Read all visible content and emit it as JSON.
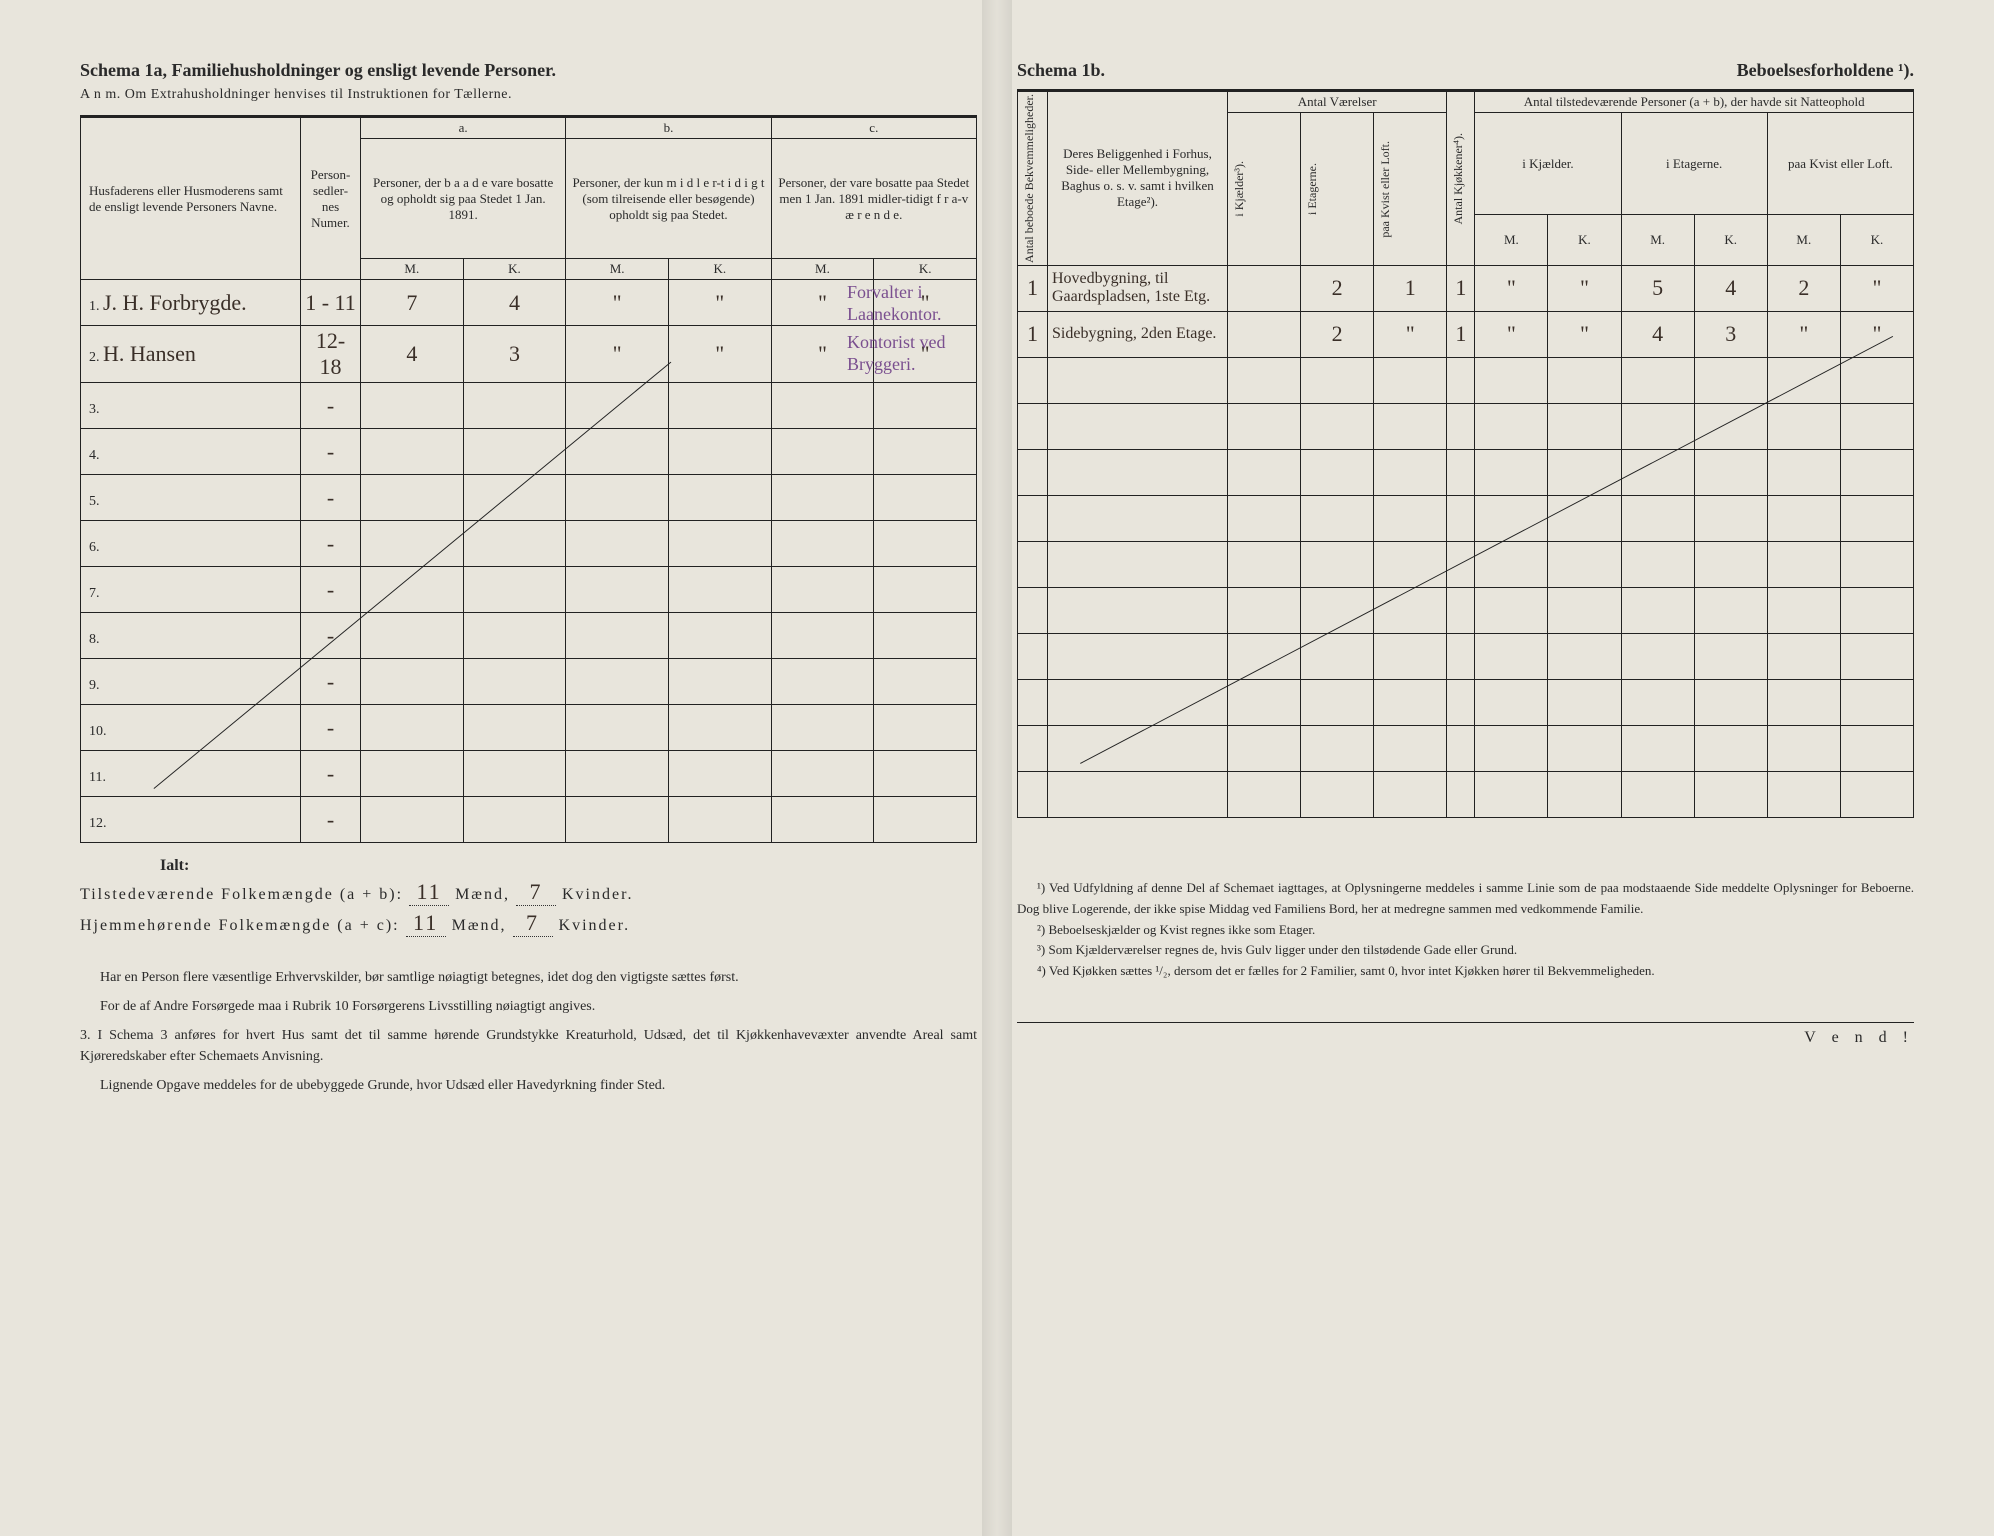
{
  "left": {
    "schema_title": "Schema 1a,  Familiehusholdninger og ensligt levende Personer.",
    "anm": "A n m.  Om Extrahusholdninger henvises til Instruktionen for Tællerne.",
    "headers": {
      "col_name": "Husfaderens eller Husmoderens samt de ensligt levende Personers Navne.",
      "col_num": "Person-sedler-nes Numer.",
      "a_label": "a.",
      "a_text": "Personer, der b a a d e vare bosatte og opholdt sig paa Stedet 1 Jan. 1891.",
      "b_label": "b.",
      "b_text": "Personer, der kun m i d l e r-t i d i g t (som tilreisende eller besøgende) opholdt sig paa Stedet.",
      "c_label": "c.",
      "c_text": "Personer, der vare bosatte paa Stedet men 1 Jan. 1891 midler-tidigt f r a-v æ r e n d e.",
      "M": "M.",
      "K": "K."
    },
    "rows": [
      {
        "n": "1.",
        "name": "J. H. Forbrygde.",
        "num": "1 - 11",
        "aM": "7",
        "aK": "4",
        "bM": "\"",
        "bK": "\"",
        "cM": "\"",
        "cK": "\"",
        "ann": "Forvalter i Laanekontor."
      },
      {
        "n": "2.",
        "name": "H. Hansen",
        "num": "12-18",
        "aM": "4",
        "aK": "3",
        "bM": "\"",
        "bK": "\"",
        "cM": "\"",
        "cK": "\"",
        "ann": "Kontorist ved Bryggeri."
      },
      {
        "n": "3."
      },
      {
        "n": "4."
      },
      {
        "n": "5."
      },
      {
        "n": "6."
      },
      {
        "n": "7."
      },
      {
        "n": "8."
      },
      {
        "n": "9."
      },
      {
        "n": "10."
      },
      {
        "n": "11."
      },
      {
        "n": "12."
      }
    ],
    "ialt": {
      "label": "Ialt:",
      "line1_a": "Tilstedeværende Folkemængde (a + b):",
      "line1_m": "11",
      "line1_mlabel": "Mænd,",
      "line1_k": "7",
      "line1_klabel": "Kvinder.",
      "line2_a": "Hjemmehørende Folkemængde (a + c):",
      "line2_m": "11",
      "line2_k": "7"
    },
    "footer": {
      "p1": "Har en Person flere væsentlige Erhvervskilder, bør samtlige nøiagtigt betegnes, idet dog den vigtigste sættes først.",
      "p2": "For de af Andre Forsørgede maa i Rubrik 10 Forsørgerens Livsstilling nøiagtigt angives.",
      "p3": "3. I Schema 3 anføres for hvert Hus samt det til samme hørende Grundstykke Kreaturhold, Udsæd, det til Kjøkkenhavevæxter anvendte Areal samt Kjøreredskaber efter Schemaets Anvisning.",
      "p4": "Lignende Opgave meddeles for de ubebyggede Grunde, hvor Udsæd eller Havedyrkning finder Sted."
    }
  },
  "right": {
    "schema_title": "Schema 1b.",
    "schema_sub": "Beboelsesforholdene ¹).",
    "headers": {
      "col_bekv": "Antal beboede Bekvemmeligheder.",
      "col_belig": "Deres Beliggenhed i Forhus, Side- eller Mellembygning, Baghus o. s. v. samt i hvilken Etage²).",
      "antal_vaer": "Antal Værelser",
      "kjael": "i Kjælder³).",
      "etag": "i Etagerne.",
      "kvist": "paa Kvist eller Loft.",
      "kjok": "Antal Kjøkkener⁴).",
      "antal_pers": "Antal tilstedeværende Personer (a + b), der havde sit Natteophold",
      "ikj": "i Kjælder.",
      "iet": "i Etagerne.",
      "paak": "paa Kvist eller Loft.",
      "M": "M.",
      "K": "K."
    },
    "rows": [
      {
        "bekv": "1",
        "belig": "Hovedbygning, til Gaardspladsen, 1ste Etg.",
        "kj": "",
        "et": "2",
        "kv": "1",
        "kjok": "1",
        "p_kjM": "\"",
        "p_kjK": "\"",
        "p_etM": "5",
        "p_etK": "4",
        "p_kvM": "2",
        "p_kvK": "\""
      },
      {
        "bekv": "1",
        "belig": "Sidebygning, 2den Etage.",
        "kj": "",
        "et": "2",
        "kv": "\"",
        "kjok": "1",
        "p_kjM": "\"",
        "p_kjK": "\"",
        "p_etM": "4",
        "p_etK": "3",
        "p_kvM": "\"",
        "p_kvK": "\""
      },
      {},
      {},
      {},
      {},
      {},
      {},
      {},
      {},
      {},
      {}
    ],
    "footnotes": {
      "f1": "¹) Ved Udfyldning af denne Del af Schemaet iagttages, at Oplysningerne meddeles i samme Linie som de paa modstaaende Side meddelte Oplysninger for Beboerne. Dog blive Logerende, der ikke spise Middag ved Familiens Bord, her at medregne sammen med vedkommende Familie.",
      "f2": "²) Beboelseskjælder og Kvist regnes ikke som Etager.",
      "f3": "³) Som Kjælderværelser regnes de, hvis Gulv ligger under den tilstødende Gade eller Grund.",
      "f4": "⁴) Ved Kjøkken sættes ¹/₂, dersom det er fælles for 2 Familier, samt 0, hvor intet Kjøkken hører til Bekvemmeligheden."
    },
    "vend": "V e n d !"
  }
}
